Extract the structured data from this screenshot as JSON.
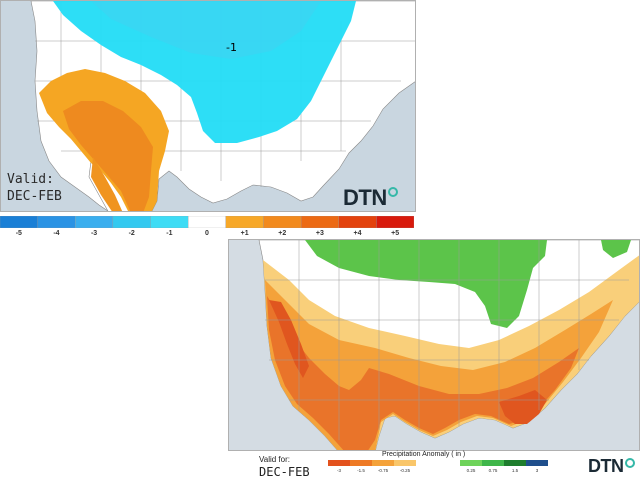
{
  "temperature_map": {
    "anomaly_label": "-1",
    "valid_label": "Valid:",
    "valid_period": "DEC-FEB",
    "logo_text": "DTN",
    "legend": {
      "ticks": [
        "-5",
        "-4",
        "-3",
        "-2",
        "-1",
        "0",
        "+1",
        "+2",
        "+3",
        "+4",
        "+5"
      ],
      "colors": [
        "#1a7fd6",
        "#2b93e4",
        "#3aaeee",
        "#33c9f0",
        "#3edcf5",
        "#ffffff",
        "#f7a828",
        "#f28a1d",
        "#ec6a14",
        "#e3420d",
        "#d81a0c"
      ]
    },
    "region_colors": {
      "cold": "#22dcf6",
      "warm": "#f5a623",
      "warm_core": "#ee8a1f"
    }
  },
  "precipitation_map": {
    "valid_label": "Valid for:",
    "valid_period": "DEC-FEB",
    "logo_text": "DTN",
    "legend": {
      "title": "Precipitation Anomaly ( in )",
      "ticks": [
        "-3",
        "-1.5",
        "-0.75",
        "-0.25",
        "0.25",
        "0.75",
        "1.5",
        "3"
      ],
      "dry_colors": [
        "#e3521d",
        "#ee7a25",
        "#f4a23a",
        "#f9c66a"
      ],
      "wet_colors": [
        "#6ed35a",
        "#3fb64a",
        "#1e7d2d",
        "#1f4f8c"
      ]
    },
    "region_colors": {
      "wet": "#5cc44a",
      "dry_light": "#f9cf7a",
      "dry_mid": "#f4a23a",
      "dry_strong": "#e9742a",
      "dry_core": "#e0561f"
    }
  }
}
